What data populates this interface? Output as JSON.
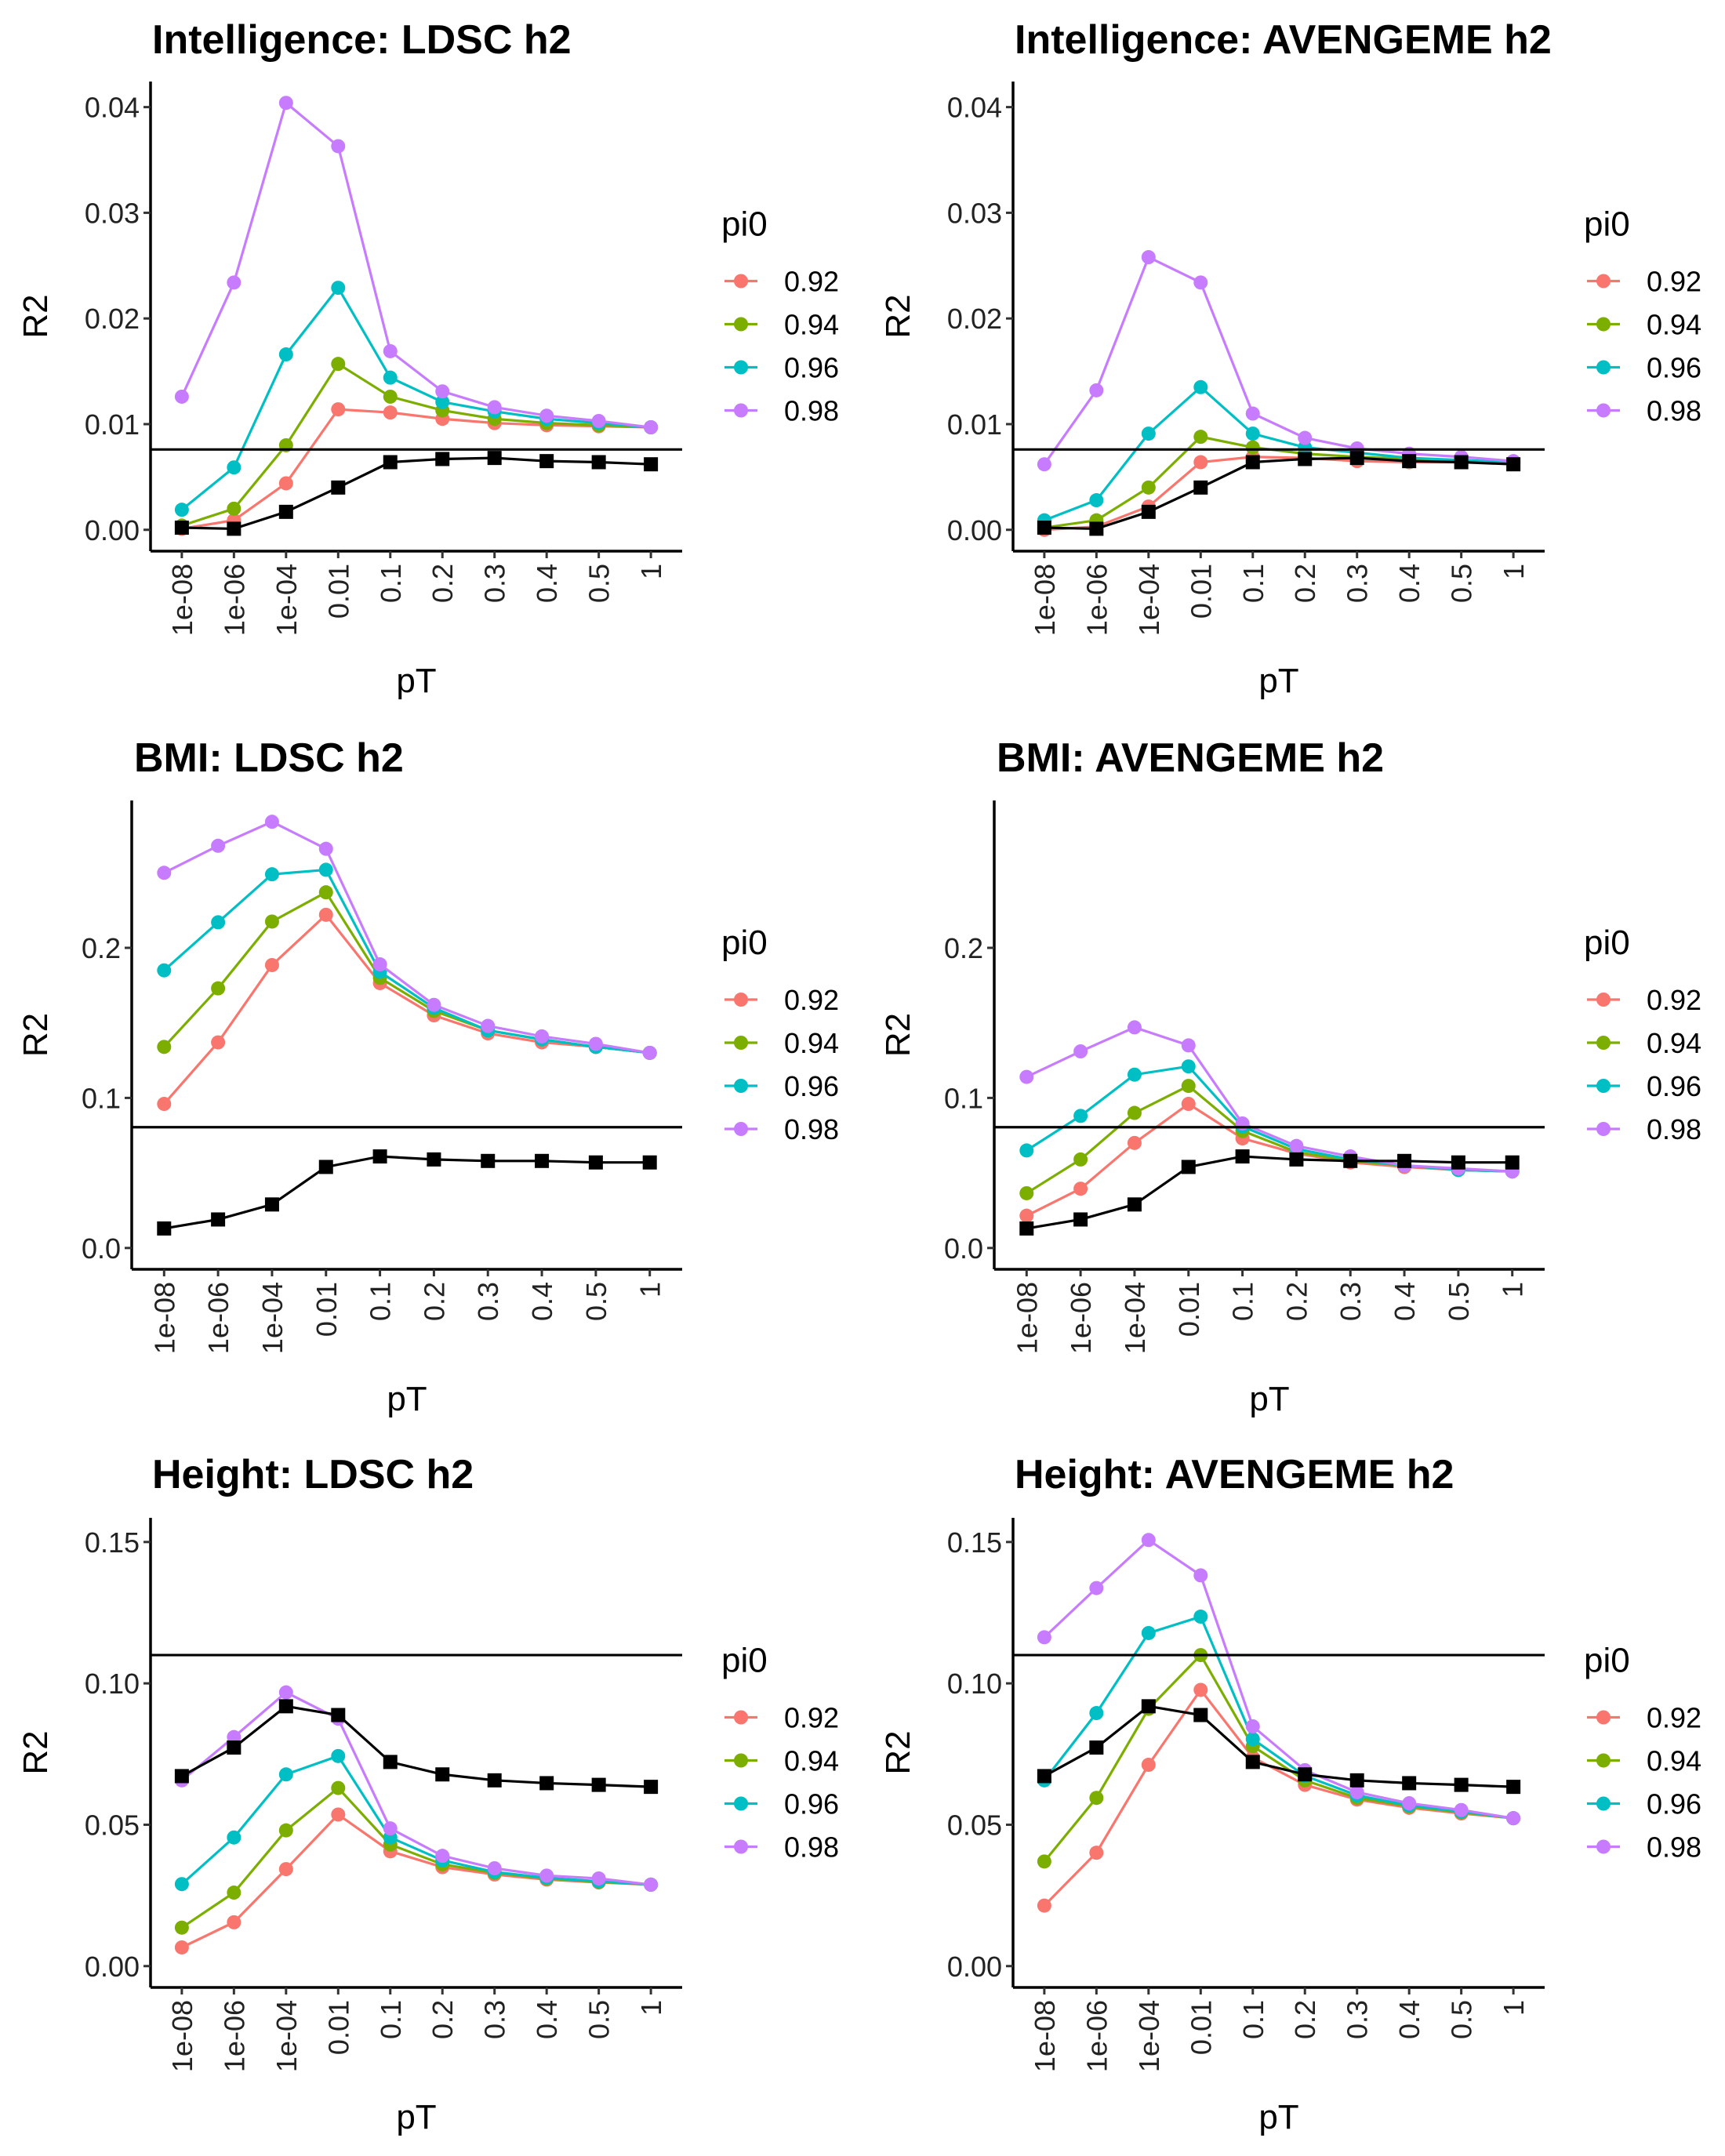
{
  "chart_data": [
    {
      "type": "line",
      "title": "Intelligence: LDSC h2",
      "xlabel": "pT",
      "ylabel": "R2",
      "categories": [
        "1e-08",
        "1e-06",
        "1e-04",
        "0.01",
        "0.1",
        "0.2",
        "0.3",
        "0.4",
        "0.5",
        "1"
      ],
      "ylim": [
        -0.00202,
        0.04242
      ],
      "yticks": [
        0,
        0.01,
        0.02,
        0.03,
        0.04
      ],
      "ytick_labels": [
        "0.00",
        "0.01",
        "0.02",
        "0.03",
        "0.04"
      ],
      "hline": 0.0076,
      "legend_title": "pi0",
      "legend_position": "right",
      "series": [
        {
          "name": "0.92",
          "color": "#F8766D",
          "marker": "circle",
          "values": [
            0.0001,
            0.0009,
            0.0044,
            0.0114,
            0.0111,
            0.0105,
            0.0101,
            0.0099,
            0.0098,
            0.0097
          ]
        },
        {
          "name": "0.94",
          "color": "#7CAE00",
          "marker": "circle",
          "values": [
            0.0004,
            0.002,
            0.008,
            0.0157,
            0.0126,
            0.0113,
            0.0105,
            0.0101,
            0.0099,
            0.0097
          ]
        },
        {
          "name": "0.96",
          "color": "#00BFC4",
          "marker": "circle",
          "values": [
            0.0019,
            0.0059,
            0.0166,
            0.0229,
            0.0144,
            0.0121,
            0.0112,
            0.0105,
            0.0101,
            0.0097
          ]
        },
        {
          "name": "0.98",
          "color": "#C77CFF",
          "marker": "circle",
          "values": [
            0.0126,
            0.0234,
            0.0404,
            0.0363,
            0.0169,
            0.0131,
            0.0116,
            0.0108,
            0.0103,
            0.0097
          ]
        },
        {
          "color": "#000000",
          "marker": "square",
          "in_legend": false,
          "values": [
            0.0002,
            0.0001,
            0.0017,
            0.004,
            0.0064,
            0.0067,
            0.0068,
            0.0065,
            0.0064,
            0.0062
          ]
        }
      ]
    },
    {
      "type": "line",
      "title": "Intelligence: AVENGEME h2",
      "xlabel": "pT",
      "ylabel": "R2",
      "categories": [
        "1e-08",
        "1e-06",
        "1e-04",
        "0.01",
        "0.1",
        "0.2",
        "0.3",
        "0.4",
        "0.5",
        "1"
      ],
      "ylim": [
        -0.00202,
        0.04242
      ],
      "yticks": [
        0,
        0.01,
        0.02,
        0.03,
        0.04
      ],
      "ytick_labels": [
        "0.00",
        "0.01",
        "0.02",
        "0.03",
        "0.04"
      ],
      "hline": 0.0076,
      "legend_title": "pi0",
      "legend_position": "right",
      "series": [
        {
          "name": "0.92",
          "color": "#F8766D",
          "marker": "circle",
          "values": [
            0.0,
            0.0003,
            0.0022,
            0.0064,
            0.0069,
            0.0068,
            0.0065,
            0.0064,
            0.0064,
            0.0063
          ]
        },
        {
          "name": "0.94",
          "color": "#7CAE00",
          "marker": "circle",
          "values": [
            0.0002,
            0.0009,
            0.004,
            0.0088,
            0.0078,
            0.0072,
            0.0069,
            0.0067,
            0.0065,
            0.0064
          ]
        },
        {
          "name": "0.96",
          "color": "#00BFC4",
          "marker": "circle",
          "values": [
            0.0009,
            0.0028,
            0.0091,
            0.0135,
            0.0091,
            0.0078,
            0.0073,
            0.0068,
            0.0066,
            0.0064
          ]
        },
        {
          "name": "0.98",
          "color": "#C77CFF",
          "marker": "circle",
          "values": [
            0.0062,
            0.0132,
            0.0258,
            0.0234,
            0.011,
            0.0087,
            0.0077,
            0.0072,
            0.0069,
            0.0065
          ]
        },
        {
          "color": "#000000",
          "marker": "square",
          "in_legend": false,
          "values": [
            0.0002,
            0.0001,
            0.0017,
            0.004,
            0.0064,
            0.0067,
            0.0068,
            0.0065,
            0.0064,
            0.0062
          ]
        }
      ]
    },
    {
      "type": "line",
      "title": "BMI: LDSC h2",
      "xlabel": "pT",
      "ylabel": "R2",
      "categories": [
        "1e-08",
        "1e-06",
        "1e-04",
        "0.01",
        "0.1",
        "0.2",
        "0.3",
        "0.4",
        "0.5",
        "1"
      ],
      "ylim": [
        -0.0142,
        0.2982
      ],
      "yticks": [
        0,
        0.1,
        0.2
      ],
      "ytick_labels": [
        "0.0",
        "0.1",
        "0.2"
      ],
      "hline": 0.0805,
      "legend_title": "pi0",
      "legend_position": "right",
      "series": [
        {
          "name": "0.92",
          "color": "#F8766D",
          "marker": "circle",
          "values": [
            0.096,
            0.137,
            0.1885,
            0.222,
            0.1765,
            0.155,
            0.143,
            0.137,
            0.134,
            0.13
          ]
        },
        {
          "name": "0.94",
          "color": "#7CAE00",
          "marker": "circle",
          "values": [
            0.134,
            0.173,
            0.2175,
            0.237,
            0.18,
            0.158,
            0.145,
            0.139,
            0.134,
            0.13
          ]
        },
        {
          "name": "0.96",
          "color": "#00BFC4",
          "marker": "circle",
          "values": [
            0.185,
            0.217,
            0.249,
            0.252,
            0.184,
            0.16,
            0.145,
            0.139,
            0.134,
            0.13
          ]
        },
        {
          "name": "0.98",
          "color": "#C77CFF",
          "marker": "circle",
          "values": [
            0.25,
            0.268,
            0.284,
            0.266,
            0.189,
            0.162,
            0.148,
            0.141,
            0.136,
            0.13
          ]
        },
        {
          "color": "#000000",
          "marker": "square",
          "in_legend": false,
          "values": [
            0.013,
            0.019,
            0.029,
            0.054,
            0.061,
            0.059,
            0.058,
            0.058,
            0.057,
            0.057
          ]
        }
      ]
    },
    {
      "type": "line",
      "title": "BMI: AVENGEME h2",
      "xlabel": "pT",
      "ylabel": "R2",
      "categories": [
        "1e-08",
        "1e-06",
        "1e-04",
        "0.01",
        "0.1",
        "0.2",
        "0.3",
        "0.4",
        "0.5",
        "1"
      ],
      "ylim": [
        -0.0142,
        0.2982
      ],
      "yticks": [
        0,
        0.1,
        0.2
      ],
      "ytick_labels": [
        "0.0",
        "0.1",
        "0.2"
      ],
      "hline": 0.0805,
      "legend_title": "pi0",
      "legend_position": "right",
      "series": [
        {
          "name": "0.92",
          "color": "#F8766D",
          "marker": "circle",
          "values": [
            0.0215,
            0.0395,
            0.07,
            0.096,
            0.073,
            0.063,
            0.057,
            0.054,
            0.052,
            0.051
          ]
        },
        {
          "name": "0.94",
          "color": "#7CAE00",
          "marker": "circle",
          "values": [
            0.0365,
            0.059,
            0.09,
            0.108,
            0.078,
            0.064,
            0.058,
            0.055,
            0.052,
            0.051
          ]
        },
        {
          "name": "0.96",
          "color": "#00BFC4",
          "marker": "circle",
          "values": [
            0.065,
            0.088,
            0.1155,
            0.121,
            0.081,
            0.066,
            0.059,
            0.055,
            0.052,
            0.051
          ]
        },
        {
          "name": "0.98",
          "color": "#C77CFF",
          "marker": "circle",
          "values": [
            0.114,
            0.131,
            0.147,
            0.135,
            0.083,
            0.068,
            0.061,
            0.055,
            0.053,
            0.051
          ]
        },
        {
          "color": "#000000",
          "marker": "square",
          "in_legend": false,
          "values": [
            0.013,
            0.019,
            0.029,
            0.054,
            0.061,
            0.059,
            0.058,
            0.058,
            0.057,
            0.057
          ]
        }
      ]
    },
    {
      "type": "line",
      "title": "Height: LDSC h2",
      "xlabel": "pT",
      "ylabel": "R2",
      "categories": [
        "1e-08",
        "1e-06",
        "1e-04",
        "0.01",
        "0.1",
        "0.2",
        "0.3",
        "0.4",
        "0.5",
        "1"
      ],
      "ylim": [
        -0.00755,
        0.15855
      ],
      "yticks": [
        0,
        0.05,
        0.1,
        0.15
      ],
      "ytick_labels": [
        "0.00",
        "0.05",
        "0.10",
        "0.15"
      ],
      "hline": 0.11,
      "legend_title": "pi0",
      "legend_position": "right",
      "series": [
        {
          "name": "0.92",
          "color": "#F8766D",
          "marker": "circle",
          "values": [
            0.0066,
            0.0155,
            0.0343,
            0.0536,
            0.0406,
            0.035,
            0.0324,
            0.0306,
            0.0296,
            0.0288
          ]
        },
        {
          "name": "0.94",
          "color": "#7CAE00",
          "marker": "circle",
          "values": [
            0.0136,
            0.026,
            0.048,
            0.063,
            0.043,
            0.036,
            0.033,
            0.031,
            0.0298,
            0.0288
          ]
        },
        {
          "name": "0.96",
          "color": "#00BFC4",
          "marker": "circle",
          "values": [
            0.029,
            0.0455,
            0.0678,
            0.0743,
            0.0455,
            0.0374,
            0.0333,
            0.0312,
            0.03,
            0.0288
          ]
        },
        {
          "name": "0.98",
          "color": "#C77CFF",
          "marker": "circle",
          "values": [
            0.0657,
            0.081,
            0.0968,
            0.0875,
            0.0487,
            0.039,
            0.0346,
            0.032,
            0.031,
            0.0288
          ]
        },
        {
          "color": "#000000",
          "marker": "square",
          "in_legend": false,
          "values": [
            0.0672,
            0.0773,
            0.0919,
            0.0888,
            0.0722,
            0.0678,
            0.0657,
            0.0647,
            0.0641,
            0.0634
          ]
        }
      ]
    },
    {
      "type": "line",
      "title": "Height: AVENGEME h2",
      "xlabel": "pT",
      "ylabel": "R2",
      "categories": [
        "1e-08",
        "1e-06",
        "1e-04",
        "0.01",
        "0.1",
        "0.2",
        "0.3",
        "0.4",
        "0.5",
        "1"
      ],
      "ylim": [
        -0.00755,
        0.15855
      ],
      "yticks": [
        0,
        0.05,
        0.1,
        0.15
      ],
      "ytick_labels": [
        "0.00",
        "0.05",
        "0.10",
        "0.15"
      ],
      "hline": 0.11,
      "legend_title": "pi0",
      "legend_position": "right",
      "series": [
        {
          "name": "0.92",
          "color": "#F8766D",
          "marker": "circle",
          "values": [
            0.0214,
            0.0401,
            0.0712,
            0.0977,
            0.0738,
            0.0641,
            0.0589,
            0.056,
            0.054,
            0.0523
          ]
        },
        {
          "name": "0.94",
          "color": "#7CAE00",
          "marker": "circle",
          "values": [
            0.037,
            0.0595,
            0.091,
            0.11,
            0.0778,
            0.0657,
            0.0595,
            0.0565,
            0.0544,
            0.0523
          ]
        },
        {
          "name": "0.96",
          "color": "#00BFC4",
          "marker": "circle",
          "values": [
            0.0657,
            0.0895,
            0.1178,
            0.1236,
            0.0803,
            0.0673,
            0.0604,
            0.0568,
            0.0547,
            0.0523
          ]
        },
        {
          "name": "0.98",
          "color": "#C77CFF",
          "marker": "circle",
          "values": [
            0.1163,
            0.1337,
            0.1507,
            0.1382,
            0.0848,
            0.0693,
            0.0615,
            0.0576,
            0.0552,
            0.0523
          ]
        },
        {
          "color": "#000000",
          "marker": "square",
          "in_legend": false,
          "values": [
            0.0672,
            0.0773,
            0.0919,
            0.0888,
            0.0722,
            0.0678,
            0.0657,
            0.0647,
            0.0641,
            0.0634
          ]
        }
      ]
    }
  ]
}
